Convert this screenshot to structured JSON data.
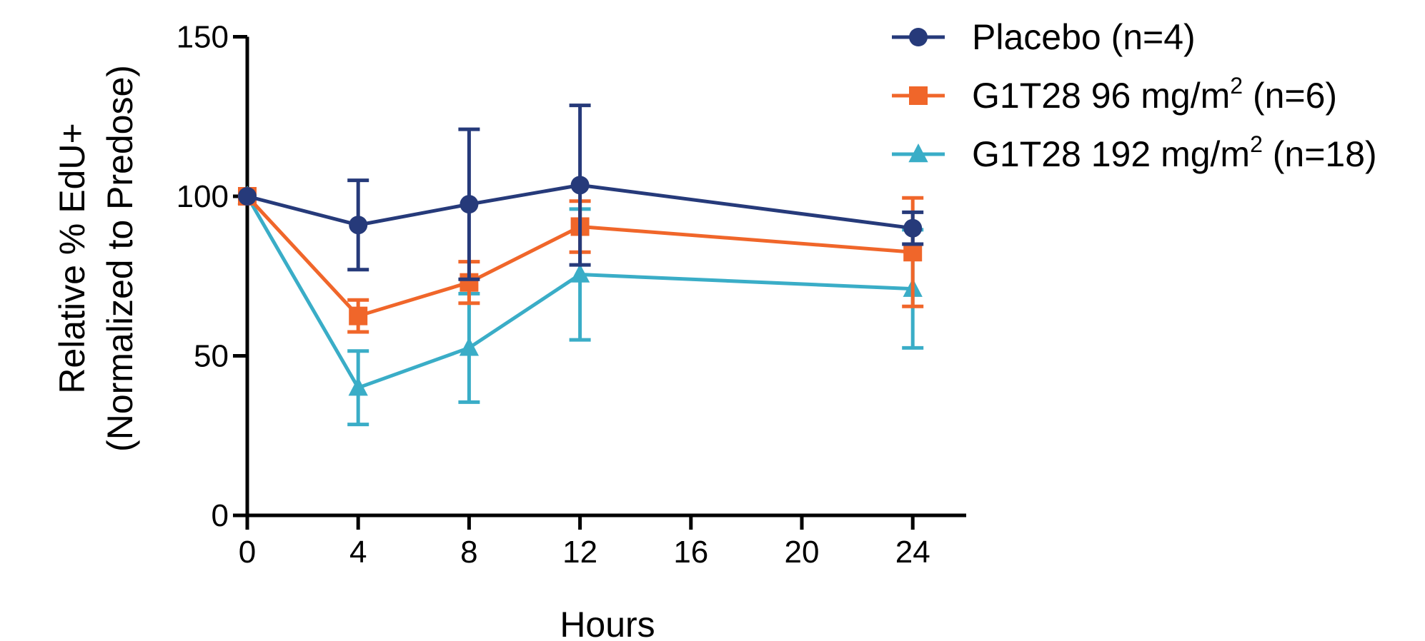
{
  "chart_data": {
    "type": "line",
    "xlabel": "Hours",
    "ylabel_line1": "Relative % EdU+",
    "ylabel_line2": "(Normalized to Predose)",
    "xlim": [
      0,
      26
    ],
    "ylim": [
      0,
      150
    ],
    "x_ticks": [
      0,
      4,
      8,
      12,
      16,
      20,
      24
    ],
    "y_ticks": [
      0,
      50,
      100,
      150
    ],
    "grid": false,
    "legend_position": "top-right",
    "series": [
      {
        "name_pre": "Placebo (n=4)",
        "name_sup": "",
        "name_post": "",
        "color": "#263a7a",
        "marker": "circle",
        "x": [
          0,
          4,
          8,
          12,
          24
        ],
        "y": [
          100,
          91,
          97.5,
          103.5,
          90
        ],
        "err": [
          0,
          14,
          23.5,
          25,
          5
        ]
      },
      {
        "name_pre": "G1T28 96 mg/m",
        "name_sup": "2",
        "name_post": " (n=6)",
        "color": "#f0662a",
        "marker": "square",
        "x": [
          0,
          4,
          8,
          12,
          24
        ],
        "y": [
          100,
          62.5,
          73,
          90.5,
          82.5
        ],
        "err": [
          0,
          5,
          6.5,
          8,
          17
        ]
      },
      {
        "name_pre": "G1T28 192 mg/m",
        "name_sup": "2",
        "name_post": " (n=18)",
        "color": "#3aadc7",
        "marker": "triangle",
        "x": [
          0,
          4,
          8,
          12,
          24
        ],
        "y": [
          100,
          40,
          52.5,
          75.5,
          71
        ],
        "err": [
          0,
          11.5,
          17,
          20.5,
          18.5
        ]
      }
    ]
  }
}
